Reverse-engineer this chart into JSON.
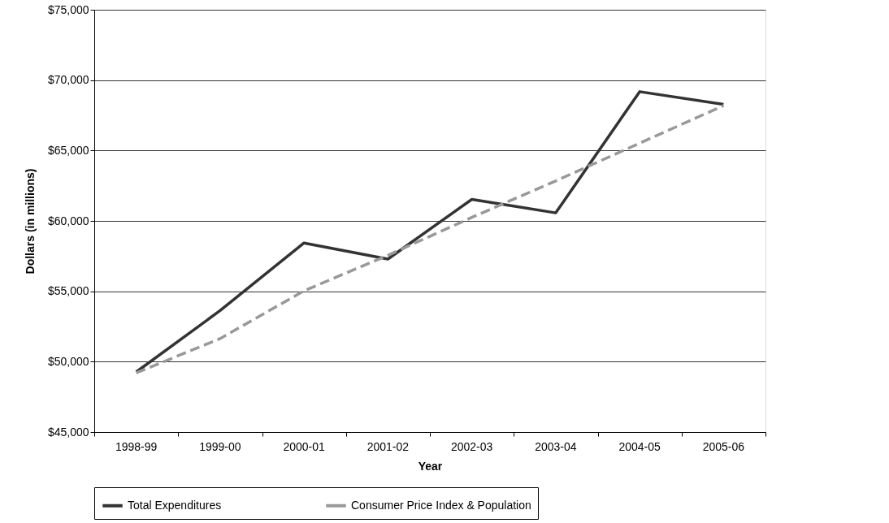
{
  "chart_data": {
    "type": "line",
    "xlabel": "Year",
    "ylabel": "Dollars (in millions)",
    "categories": [
      "1998-99",
      "1999-00",
      "2000-01",
      "2001-02",
      "2002-03",
      "2003-04",
      "2004-05",
      "2005-06"
    ],
    "series": [
      {
        "name": "Total Expenditures",
        "color": "#333333",
        "line_style": "solid",
        "values": [
          49270,
          53630,
          58430,
          57290,
          61530,
          60570,
          69180,
          68280
        ]
      },
      {
        "name": "Consumer Price Index & Population",
        "color": "#999999",
        "line_style": "dashed",
        "values": [
          49200,
          51640,
          55030,
          57560,
          60250,
          62840,
          65520,
          68190
        ]
      }
    ],
    "ylim": [
      45000,
      75000
    ],
    "yticks": [
      {
        "value": 45000,
        "label": "$45,000"
      },
      {
        "value": 50000,
        "label": "$50,000"
      },
      {
        "value": 55000,
        "label": "$55,000"
      },
      {
        "value": 60000,
        "label": "$60,000"
      },
      {
        "value": 65000,
        "label": "$65,000"
      },
      {
        "value": 70000,
        "label": "$70,000"
      },
      {
        "value": 75000,
        "label": "$75,000"
      }
    ],
    "grid": "y",
    "legend": "bottom",
    "marker": "none"
  }
}
